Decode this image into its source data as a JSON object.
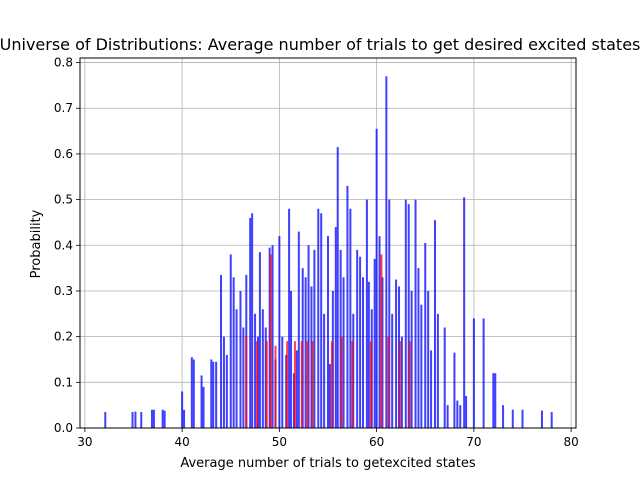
{
  "chart_data": {
    "type": "bar",
    "title": "Universe of Distributions: Average number of trials to get desired excited states",
    "xlabel": "Average number of trials to getexcited states",
    "ylabel": "Probability",
    "xlim": [
      29.5,
      80.5
    ],
    "ylim": [
      0,
      0.81
    ],
    "x_ticks": [
      30,
      40,
      50,
      60,
      70,
      80
    ],
    "y_ticks": [
      0.0,
      0.1,
      0.2,
      0.3,
      0.4,
      0.5,
      0.6,
      0.7,
      0.8
    ],
    "grid": true,
    "legend": "none",
    "series": [
      {
        "color": "#0000ff",
        "x": [
          32.1,
          34.9,
          35.2,
          35.8,
          36.9,
          37.1,
          38.0,
          38.2,
          40.0,
          40.2,
          41.0,
          41.2,
          42.0,
          42.2,
          43.0,
          43.2,
          43.5,
          44.0,
          44.3,
          44.6,
          45.0,
          45.3,
          45.6,
          46.0,
          46.3,
          46.6,
          47.0,
          47.2,
          47.5,
          47.8,
          48.0,
          48.3,
          48.6,
          49.0,
          49.3,
          49.6,
          50.0,
          50.3,
          50.7,
          51.0,
          51.2,
          51.5,
          51.8,
          52.0,
          52.4,
          52.7,
          53.0,
          53.3,
          53.6,
          54.0,
          54.3,
          54.6,
          55.0,
          55.2,
          55.5,
          55.8,
          56.0,
          56.3,
          56.6,
          57.0,
          57.3,
          57.6,
          58.0,
          58.3,
          58.6,
          59.0,
          59.2,
          59.5,
          59.8,
          60.0,
          60.3,
          60.6,
          61.0,
          61.3,
          61.6,
          62.0,
          62.3,
          62.6,
          63.0,
          63.3,
          63.6,
          64.0,
          64.3,
          64.6,
          65.0,
          65.3,
          65.6,
          66.0,
          66.3,
          67.0,
          67.3,
          68.0,
          68.3,
          68.6,
          69.0,
          69.2,
          70.0,
          71.0,
          72.0,
          72.2,
          73.0,
          74.0,
          75.0,
          77.0,
          78.0
        ],
        "values": [
          0.035,
          0.035,
          0.036,
          0.035,
          0.04,
          0.04,
          0.04,
          0.038,
          0.08,
          0.04,
          0.155,
          0.15,
          0.115,
          0.09,
          0.15,
          0.145,
          0.145,
          0.335,
          0.2,
          0.16,
          0.38,
          0.33,
          0.26,
          0.3,
          0.22,
          0.335,
          0.46,
          0.47,
          0.25,
          0.2,
          0.385,
          0.26,
          0.22,
          0.395,
          0.4,
          0.15,
          0.42,
          0.2,
          0.16,
          0.48,
          0.3,
          0.12,
          0.17,
          0.43,
          0.35,
          0.33,
          0.4,
          0.31,
          0.39,
          0.48,
          0.47,
          0.25,
          0.42,
          0.14,
          0.3,
          0.44,
          0.615,
          0.39,
          0.33,
          0.53,
          0.48,
          0.25,
          0.39,
          0.375,
          0.33,
          0.5,
          0.32,
          0.26,
          0.37,
          0.655,
          0.42,
          0.33,
          0.77,
          0.5,
          0.25,
          0.325,
          0.31,
          0.2,
          0.5,
          0.49,
          0.3,
          0.5,
          0.35,
          0.27,
          0.405,
          0.3,
          0.17,
          0.455,
          0.25,
          0.22,
          0.05,
          0.165,
          0.06,
          0.05,
          0.505,
          0.07,
          0.24,
          0.24,
          0.12,
          0.12,
          0.05,
          0.04,
          0.04,
          0.038,
          0.035
        ]
      },
      {
        "color": "#ff0000",
        "x": [
          46.6,
          47.7,
          48.7,
          49.1,
          49.6,
          50.8,
          51.6,
          52.3,
          52.9,
          53.4,
          55.4,
          56.4,
          57.5,
          59.4,
          60.5,
          61.2,
          62.4,
          63.4
        ],
        "values": [
          0.2,
          0.19,
          0.19,
          0.38,
          0.18,
          0.19,
          0.19,
          0.19,
          0.19,
          0.19,
          0.19,
          0.2,
          0.19,
          0.19,
          0.38,
          0.2,
          0.19,
          0.19
        ]
      }
    ]
  }
}
